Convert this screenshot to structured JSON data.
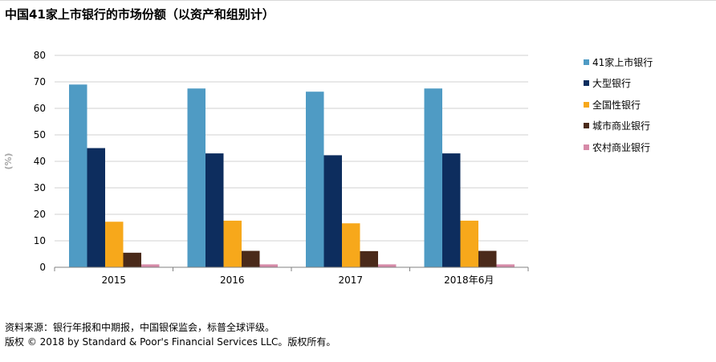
{
  "title": "中国41家上市银行的市场份额（以资产和组别计）",
  "footer": {
    "source": "资料来源：银行年报和中期报，中国银保监会，标普全球评级。",
    "copyright": "版权 © 2018 by Standard & Poor's Financial Services LLC。版权所有。"
  },
  "chart_data": {
    "type": "bar",
    "title": "中国41家上市银行的市场份额（以资产和组别计）",
    "xlabel": "",
    "ylabel": "(%)",
    "ylim": [
      0,
      80
    ],
    "yticks": [
      0,
      10,
      20,
      30,
      40,
      50,
      60,
      70,
      80
    ],
    "grid": true,
    "legend_position": "right",
    "categories": [
      "2015",
      "2016",
      "2017",
      "2018年6月"
    ],
    "series": [
      {
        "name": "41家上市银行",
        "color": "#4f9bc4",
        "values": [
          69,
          67.5,
          66.3,
          67.5
        ]
      },
      {
        "name": "大型银行",
        "color": "#0d2d5e",
        "values": [
          45,
          43,
          42.3,
          43
        ]
      },
      {
        "name": "全国性银行",
        "color": "#f7a81b",
        "values": [
          17.2,
          17.6,
          16.6,
          17.6
        ]
      },
      {
        "name": "城市商业银行",
        "color": "#4a2a1a",
        "values": [
          5.5,
          6.2,
          6.1,
          6.2
        ]
      },
      {
        "name": "农村商业银行",
        "color": "#d68aa8",
        "values": [
          1.1,
          1.1,
          1.1,
          1.1
        ]
      }
    ]
  }
}
